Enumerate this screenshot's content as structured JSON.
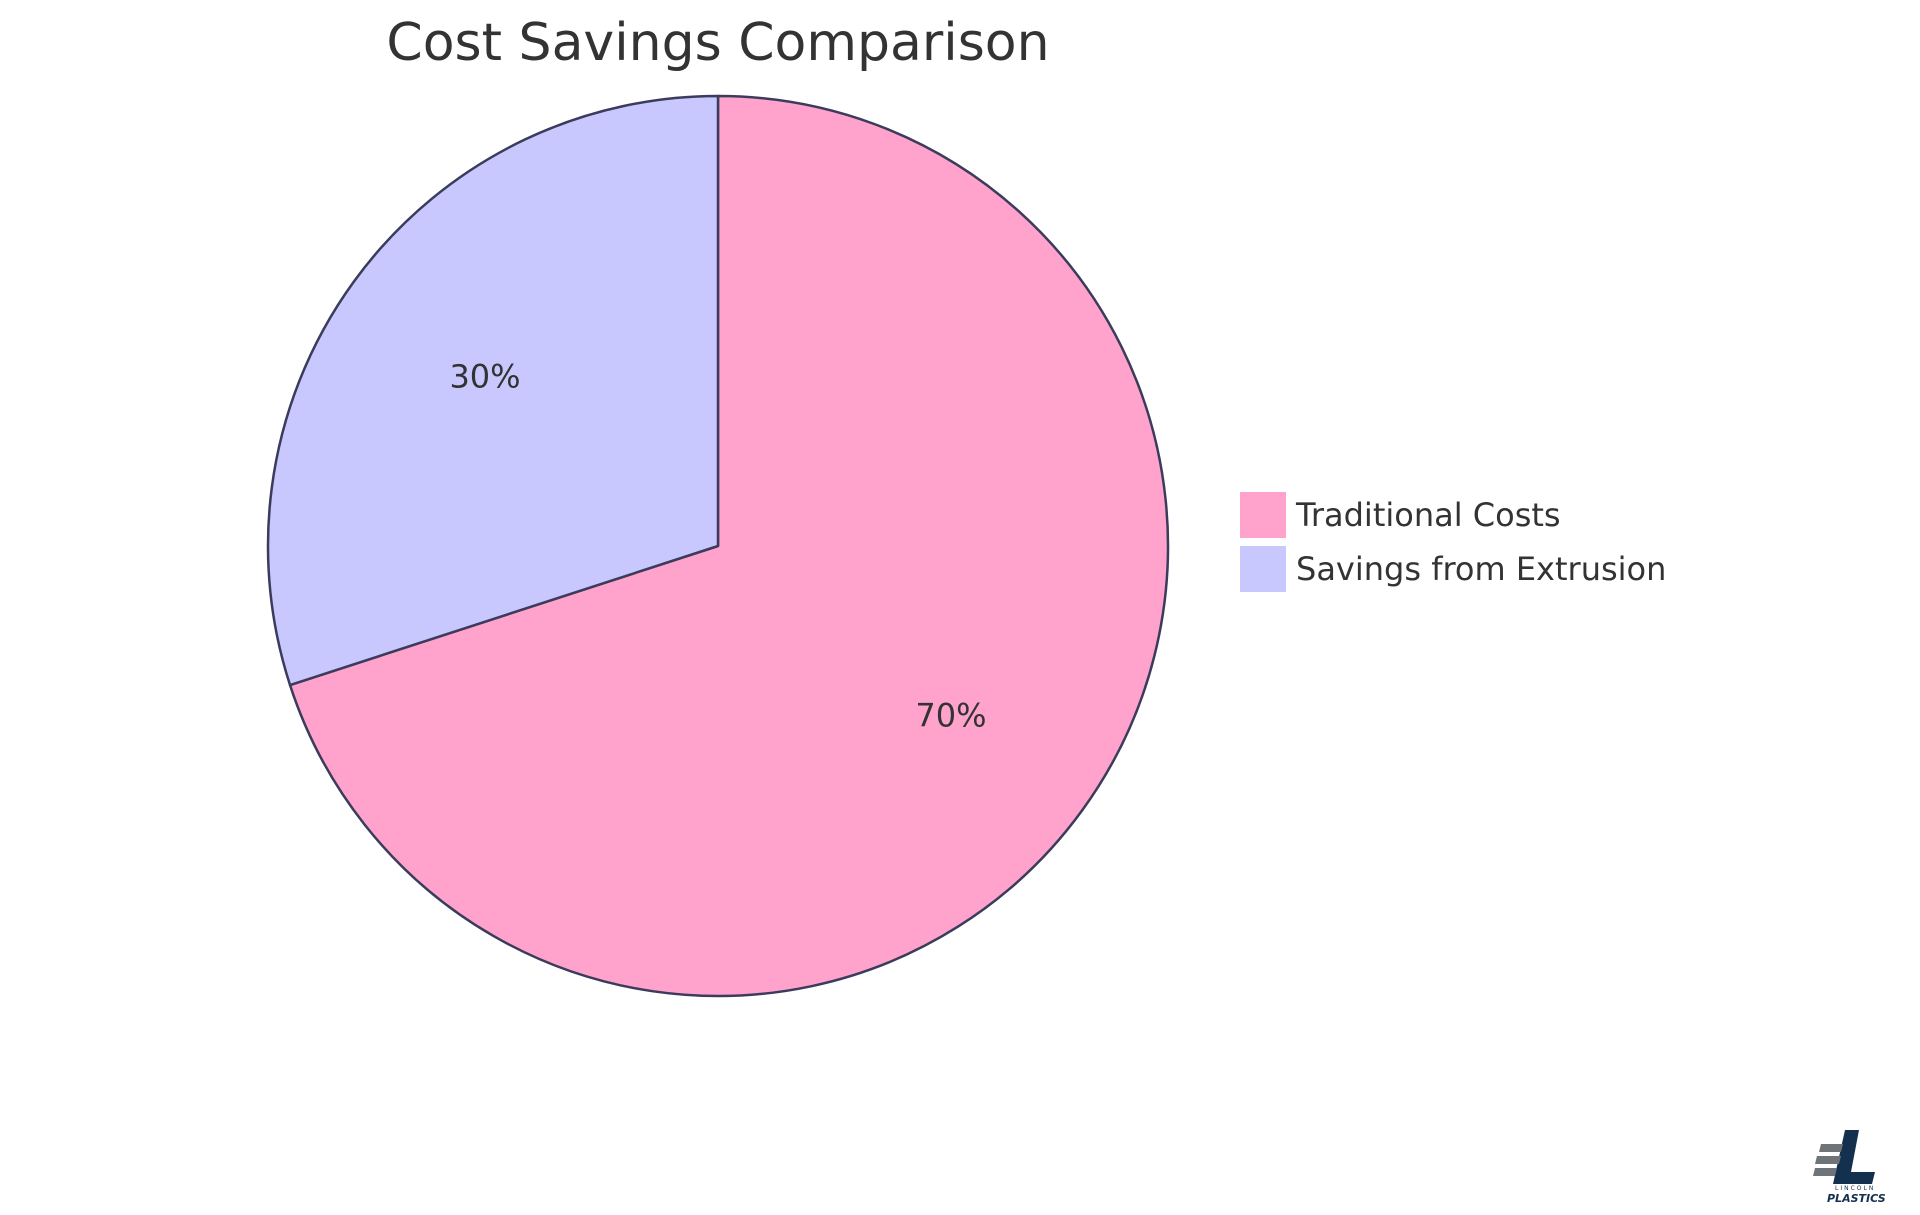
{
  "chart_data": {
    "type": "pie",
    "title": "Cost Savings Comparison",
    "slices": [
      {
        "label": "Traditional Costs",
        "value": 70,
        "display": "70%",
        "color": "#FFA3CD"
      },
      {
        "label": "Savings from Extrusion",
        "value": 30,
        "display": "30%",
        "color": "#C8C8FF"
      }
    ],
    "start_angle_deg": 0,
    "direction": "clockwise",
    "stroke_color": "#3b3b5c",
    "legend_position": "right"
  },
  "logo": {
    "name": "LINCOLN PLASTICS",
    "top_text": "LINCOLN",
    "bottom_text": "PLASTICS",
    "color": "#14304f",
    "accent_color": "#6f7478"
  }
}
